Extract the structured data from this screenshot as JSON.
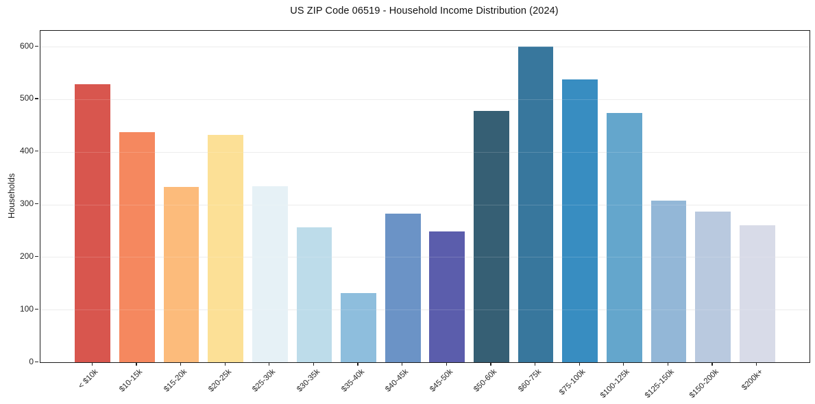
{
  "figure": {
    "background": "#ffffff"
  },
  "chart_data": {
    "type": "bar",
    "title": "US ZIP Code 06519 - Household Income Distribution (2024)",
    "xlabel": "",
    "ylabel": "Households",
    "categories": [
      "< $10k",
      "$10-15k",
      "$15-20k",
      "$20-25k",
      "$25-30k",
      "$30-35k",
      "$35-40k",
      "$40-45k",
      "$45-50k",
      "$50-60k",
      "$60-75k",
      "$75-100k",
      "$100-125k",
      "$125-150k",
      "$150-200k",
      "$200k+"
    ],
    "values": [
      528,
      437,
      333,
      432,
      334,
      257,
      132,
      283,
      248,
      478,
      600,
      538,
      474,
      307,
      287,
      261
    ],
    "bar_colors": [
      "#d8564e",
      "#f5885f",
      "#fcbb7b",
      "#fce096",
      "#e6f1f6",
      "#bddcea",
      "#8ebedd",
      "#6b93c6",
      "#5b5dac",
      "#365f74",
      "#38779d",
      "#388dc1",
      "#64a6cc",
      "#93b7d7",
      "#b9c9df",
      "#d8dbe8"
    ],
    "yticks": [
      0,
      100,
      200,
      300,
      400,
      500,
      600
    ],
    "ylim": [
      0,
      630
    ],
    "grid": "horizontal",
    "grid_color": "#e9e9e9",
    "legend": "none",
    "bar_width_fraction": 0.8
  }
}
